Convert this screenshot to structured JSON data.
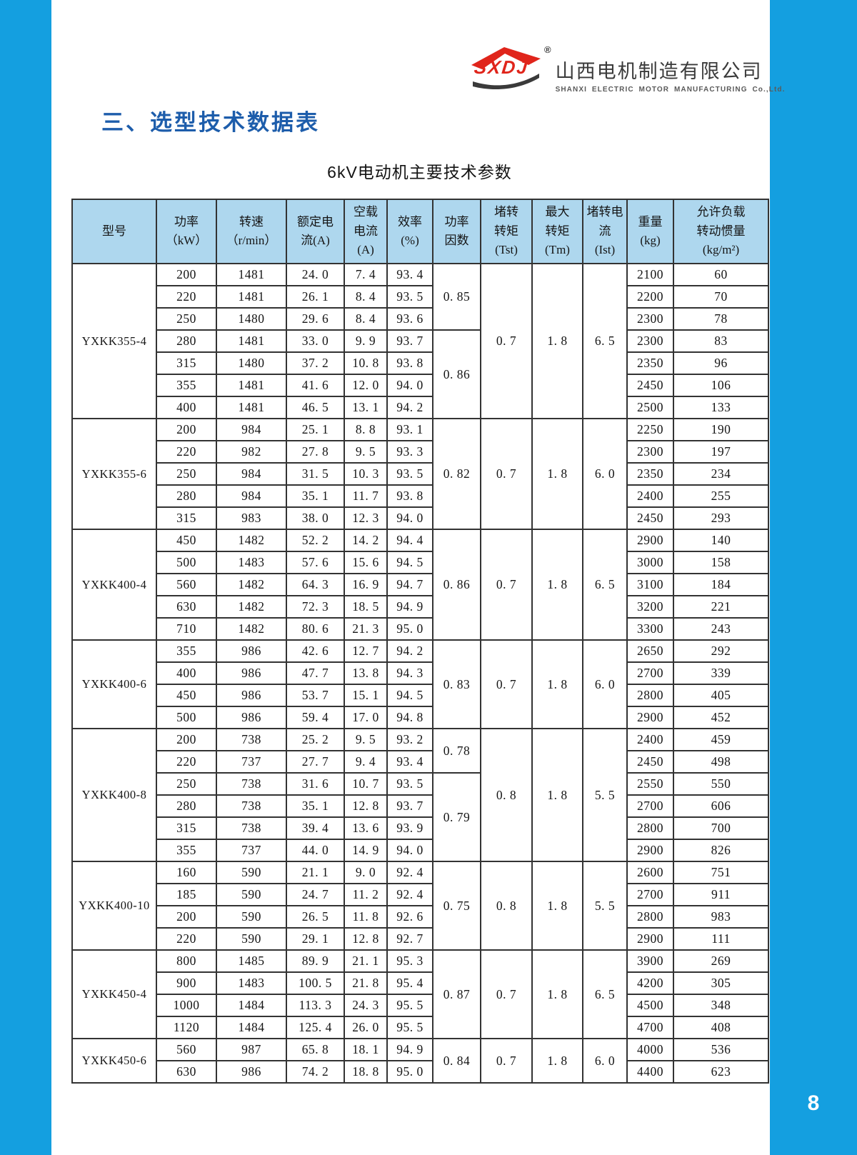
{
  "page": {
    "number": "8"
  },
  "logo": {
    "brand": "SXDJ",
    "reg": "®",
    "company_cn": "山西电机制造有限公司",
    "company_en": "SHANXI ELECTRIC MOTOR MANUFACTURING Co.,Ltd."
  },
  "heading": "三、选型技术数据表",
  "table": {
    "title": "6kV电动机主要技术参数",
    "columns": [
      "型号",
      "功率\n（kW）",
      "转速\n（r/min）",
      "额定电\n流(A)",
      "空载\n电流\n(A)",
      "效率\n(%)",
      "功率\n因数",
      "堵转\n转矩\n(Tst)",
      "最大\n转矩\n(Tm)",
      "堵转电\n流\n(Ist)",
      "重量\n(kg)",
      "允许负载\n转动惯量\n(kg/m²)"
    ],
    "groups": [
      {
        "model": "YXKK355-4",
        "rows": [
          [
            "200",
            "1481",
            "24. 0",
            "7. 4",
            "93. 4",
            "2100",
            "60"
          ],
          [
            "220",
            "1481",
            "26. 1",
            "8. 4",
            "93. 5",
            "2200",
            "70"
          ],
          [
            "250",
            "1480",
            "29. 6",
            "8. 4",
            "93. 6",
            "2300",
            "78"
          ],
          [
            "280",
            "1481",
            "33. 0",
            "9. 9",
            "93. 7",
            "2300",
            "83"
          ],
          [
            "315",
            "1480",
            "37. 2",
            "10. 8",
            "93. 8",
            "2350",
            "96"
          ],
          [
            "355",
            "1481",
            "41. 6",
            "12. 0",
            "94. 0",
            "2450",
            "106"
          ],
          [
            "400",
            "1481",
            "46. 5",
            "13. 1",
            "94. 2",
            "2500",
            "133"
          ]
        ],
        "pf": [
          {
            "value": "0. 85",
            "span": 3
          },
          {
            "value": "0. 86",
            "span": 4
          }
        ],
        "tst": "0. 7",
        "tm": "1. 8",
        "ist": "6. 5"
      },
      {
        "model": "YXKK355-6",
        "rows": [
          [
            "200",
            "984",
            "25. 1",
            "8. 8",
            "93. 1",
            "2250",
            "190"
          ],
          [
            "220",
            "982",
            "27. 8",
            "9. 5",
            "93. 3",
            "2300",
            "197"
          ],
          [
            "250",
            "984",
            "31. 5",
            "10. 3",
            "93. 5",
            "2350",
            "234"
          ],
          [
            "280",
            "984",
            "35. 1",
            "11. 7",
            "93. 8",
            "2400",
            "255"
          ],
          [
            "315",
            "983",
            "38. 0",
            "12. 3",
            "94. 0",
            "2450",
            "293"
          ]
        ],
        "pf": [
          {
            "value": "0. 82",
            "span": 5
          }
        ],
        "tst": "0. 7",
        "tm": "1. 8",
        "ist": "6. 0"
      },
      {
        "model": "YXKK400-4",
        "rows": [
          [
            "450",
            "1482",
            "52. 2",
            "14. 2",
            "94. 4",
            "2900",
            "140"
          ],
          [
            "500",
            "1483",
            "57. 6",
            "15. 6",
            "94. 5",
            "3000",
            "158"
          ],
          [
            "560",
            "1482",
            "64. 3",
            "16. 9",
            "94. 7",
            "3100",
            "184"
          ],
          [
            "630",
            "1482",
            "72. 3",
            "18. 5",
            "94. 9",
            "3200",
            "221"
          ],
          [
            "710",
            "1482",
            "80. 6",
            "21. 3",
            "95. 0",
            "3300",
            "243"
          ]
        ],
        "pf": [
          {
            "value": "0. 86",
            "span": 5
          }
        ],
        "tst": "0. 7",
        "tm": "1. 8",
        "ist": "6. 5"
      },
      {
        "model": "YXKK400-6",
        "rows": [
          [
            "355",
            "986",
            "42. 6",
            "12. 7",
            "94. 2",
            "2650",
            "292"
          ],
          [
            "400",
            "986",
            "47. 7",
            "13. 8",
            "94. 3",
            "2700",
            "339"
          ],
          [
            "450",
            "986",
            "53. 7",
            "15. 1",
            "94. 5",
            "2800",
            "405"
          ],
          [
            "500",
            "986",
            "59. 4",
            "17. 0",
            "94. 8",
            "2900",
            "452"
          ]
        ],
        "pf": [
          {
            "value": "0. 83",
            "span": 4
          }
        ],
        "tst": "0. 7",
        "tm": "1. 8",
        "ist": "6. 0"
      },
      {
        "model": "YXKK400-8",
        "rows": [
          [
            "200",
            "738",
            "25. 2",
            "9. 5",
            "93. 2",
            "2400",
            "459"
          ],
          [
            "220",
            "737",
            "27. 7",
            "9. 4",
            "93. 4",
            "2450",
            "498"
          ],
          [
            "250",
            "738",
            "31. 6",
            "10. 7",
            "93. 5",
            "2550",
            "550"
          ],
          [
            "280",
            "738",
            "35. 1",
            "12. 8",
            "93. 7",
            "2700",
            "606"
          ],
          [
            "315",
            "738",
            "39. 4",
            "13. 6",
            "93. 9",
            "2800",
            "700"
          ],
          [
            "355",
            "737",
            "44. 0",
            "14. 9",
            "94. 0",
            "2900",
            "826"
          ]
        ],
        "pf": [
          {
            "value": "0. 78",
            "span": 2
          },
          {
            "value": "0. 79",
            "span": 4
          }
        ],
        "tst": "0. 8",
        "tm": "1. 8",
        "ist": "5. 5"
      },
      {
        "model": "YXKK400-10",
        "rows": [
          [
            "160",
            "590",
            "21. 1",
            "9. 0",
            "92. 4",
            "2600",
            "751"
          ],
          [
            "185",
            "590",
            "24. 7",
            "11. 2",
            "92. 4",
            "2700",
            "911"
          ],
          [
            "200",
            "590",
            "26. 5",
            "11. 8",
            "92. 6",
            "2800",
            "983"
          ],
          [
            "220",
            "590",
            "29. 1",
            "12. 8",
            "92. 7",
            "2900",
            "111"
          ]
        ],
        "pf": [
          {
            "value": "0. 75",
            "span": 4
          }
        ],
        "tst": "0. 8",
        "tm": "1. 8",
        "ist": "5. 5"
      },
      {
        "model": "YXKK450-4",
        "rows": [
          [
            "800",
            "1485",
            "89. 9",
            "21. 1",
            "95. 3",
            "3900",
            "269"
          ],
          [
            "900",
            "1483",
            "100. 5",
            "21. 8",
            "95. 4",
            "4200",
            "305"
          ],
          [
            "1000",
            "1484",
            "113. 3",
            "24. 3",
            "95. 5",
            "4500",
            "348"
          ],
          [
            "1120",
            "1484",
            "125. 4",
            "26. 0",
            "95. 5",
            "4700",
            "408"
          ]
        ],
        "pf": [
          {
            "value": "0. 87",
            "span": 4
          }
        ],
        "tst": "0. 7",
        "tm": "1. 8",
        "ist": "6. 5"
      },
      {
        "model": "YXKK450-6",
        "rows": [
          [
            "560",
            "987",
            "65. 8",
            "18. 1",
            "94. 9",
            "4000",
            "536"
          ],
          [
            "630",
            "986",
            "74. 2",
            "18. 8",
            "95. 0",
            "4400",
            "623"
          ]
        ],
        "pf": [
          {
            "value": "0. 84",
            "span": 2
          }
        ],
        "tst": "0. 7",
        "tm": "1. 8",
        "ist": "6. 0"
      }
    ]
  }
}
